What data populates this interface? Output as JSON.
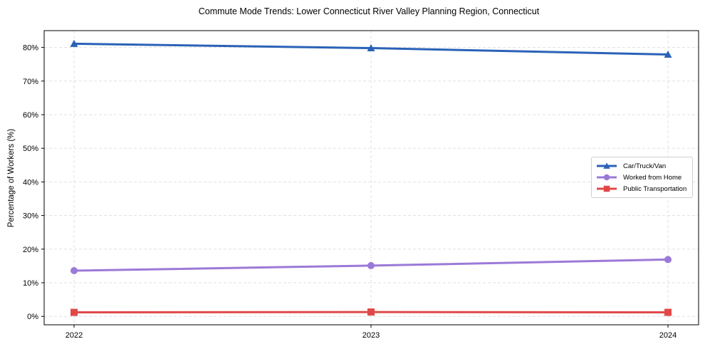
{
  "chart_data": {
    "type": "line",
    "title": "Commute Mode Trends: Lower Connecticut River Valley Planning Region, Connecticut",
    "xlabel": "",
    "ylabel": "Percentage of Workers (%)",
    "x": [
      "2022",
      "2023",
      "2024"
    ],
    "ylim": [
      -2.5,
      85
    ],
    "yticks": [
      0,
      10,
      20,
      30,
      40,
      50,
      60,
      70,
      80
    ],
    "ytick_labels": [
      "0%",
      "10%",
      "20%",
      "30%",
      "40%",
      "50%",
      "60%",
      "70%",
      "80%"
    ],
    "grid": true,
    "legend_position": "center right",
    "series": [
      {
        "name": "Car/Truck/Van",
        "values": [
          81.1,
          79.8,
          77.9
        ],
        "color": "#2a62b8",
        "marker": "triangle"
      },
      {
        "name": "Worked from Home",
        "values": [
          13.6,
          15.1,
          16.9
        ],
        "color": "#9b79d8",
        "marker": "circle"
      },
      {
        "name": "Public Transportation",
        "values": [
          1.2,
          1.3,
          1.2
        ],
        "color": "#e04848",
        "marker": "square"
      }
    ]
  }
}
